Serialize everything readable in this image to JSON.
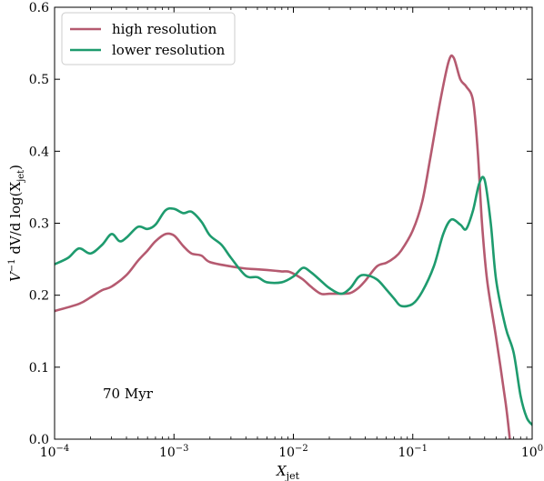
{
  "chart_data": {
    "type": "line",
    "xscale": "log",
    "xlim": [
      0.0001,
      1
    ],
    "ylim": [
      0.0,
      0.6
    ],
    "x_ticks": [
      {
        "value": 0.0001,
        "base": "10",
        "exp": "−4"
      },
      {
        "value": 0.001,
        "base": "10",
        "exp": "−3"
      },
      {
        "value": 0.01,
        "base": "10",
        "exp": "−2"
      },
      {
        "value": 0.1,
        "base": "10",
        "exp": "−1"
      },
      {
        "value": 1,
        "base": "10",
        "exp": "0"
      }
    ],
    "y_ticks": [
      {
        "value": 0.0,
        "label": "0.0"
      },
      {
        "value": 0.1,
        "label": "0.1"
      },
      {
        "value": 0.2,
        "label": "0.2"
      },
      {
        "value": 0.3,
        "label": "0.3"
      },
      {
        "value": 0.4,
        "label": "0.4"
      },
      {
        "value": 0.5,
        "label": "0.5"
      },
      {
        "value": 0.6,
        "label": "0.6"
      }
    ],
    "xlabel": {
      "main": "X",
      "sub": "jet"
    },
    "ylabel": {
      "pre": "V",
      "sup": "−1",
      "mid": " dV/d log(X",
      "sub": "jet",
      "post": ")"
    },
    "annotation": "70 Myr",
    "legend_position": "top-left",
    "grid": false,
    "series": [
      {
        "name": "high resolution",
        "color": "#b55a70",
        "points": [
          [
            0.0001,
            0.178
          ],
          [
            0.00016,
            0.188
          ],
          [
            0.0002,
            0.197
          ],
          [
            0.00025,
            0.207
          ],
          [
            0.0003,
            0.212
          ],
          [
            0.0004,
            0.228
          ],
          [
            0.0005,
            0.248
          ],
          [
            0.0006,
            0.262
          ],
          [
            0.0007,
            0.275
          ],
          [
            0.00085,
            0.285
          ],
          [
            0.001,
            0.283
          ],
          [
            0.0012,
            0.268
          ],
          [
            0.0014,
            0.258
          ],
          [
            0.0017,
            0.255
          ],
          [
            0.002,
            0.246
          ],
          [
            0.003,
            0.24
          ],
          [
            0.004,
            0.237
          ],
          [
            0.005,
            0.236
          ],
          [
            0.006,
            0.235
          ],
          [
            0.007,
            0.234
          ],
          [
            0.008,
            0.233
          ],
          [
            0.009,
            0.233
          ],
          [
            0.01,
            0.23
          ],
          [
            0.012,
            0.222
          ],
          [
            0.014,
            0.212
          ],
          [
            0.017,
            0.202
          ],
          [
            0.02,
            0.202
          ],
          [
            0.025,
            0.202
          ],
          [
            0.03,
            0.203
          ],
          [
            0.035,
            0.21
          ],
          [
            0.04,
            0.22
          ],
          [
            0.05,
            0.24
          ],
          [
            0.06,
            0.245
          ],
          [
            0.07,
            0.252
          ],
          [
            0.08,
            0.262
          ],
          [
            0.1,
            0.29
          ],
          [
            0.12,
            0.33
          ],
          [
            0.14,
            0.39
          ],
          [
            0.17,
            0.47
          ],
          [
            0.2,
            0.525
          ],
          [
            0.22,
            0.53
          ],
          [
            0.25,
            0.5
          ],
          [
            0.28,
            0.49
          ],
          [
            0.32,
            0.47
          ],
          [
            0.35,
            0.4
          ],
          [
            0.38,
            0.3
          ],
          [
            0.42,
            0.22
          ],
          [
            0.5,
            0.14
          ],
          [
            0.6,
            0.05
          ],
          [
            0.65,
            0.0
          ]
        ]
      },
      {
        "name": "lower resolution",
        "color": "#1e9b6e",
        "points": [
          [
            0.0001,
            0.243
          ],
          [
            0.00013,
            0.252
          ],
          [
            0.00016,
            0.265
          ],
          [
            0.0002,
            0.258
          ],
          [
            0.00025,
            0.27
          ],
          [
            0.0003,
            0.285
          ],
          [
            0.00035,
            0.275
          ],
          [
            0.0004,
            0.28
          ],
          [
            0.0005,
            0.295
          ],
          [
            0.0006,
            0.292
          ],
          [
            0.0007,
            0.298
          ],
          [
            0.00085,
            0.318
          ],
          [
            0.001,
            0.32
          ],
          [
            0.0012,
            0.314
          ],
          [
            0.0014,
            0.316
          ],
          [
            0.0017,
            0.302
          ],
          [
            0.002,
            0.283
          ],
          [
            0.0025,
            0.27
          ],
          [
            0.003,
            0.252
          ],
          [
            0.004,
            0.227
          ],
          [
            0.005,
            0.225
          ],
          [
            0.006,
            0.218
          ],
          [
            0.008,
            0.218
          ],
          [
            0.01,
            0.226
          ],
          [
            0.012,
            0.238
          ],
          [
            0.014,
            0.232
          ],
          [
            0.017,
            0.22
          ],
          [
            0.02,
            0.21
          ],
          [
            0.025,
            0.202
          ],
          [
            0.03,
            0.21
          ],
          [
            0.035,
            0.225
          ],
          [
            0.04,
            0.228
          ],
          [
            0.05,
            0.222
          ],
          [
            0.06,
            0.208
          ],
          [
            0.07,
            0.195
          ],
          [
            0.08,
            0.185
          ],
          [
            0.1,
            0.188
          ],
          [
            0.12,
            0.205
          ],
          [
            0.15,
            0.24
          ],
          [
            0.18,
            0.285
          ],
          [
            0.21,
            0.305
          ],
          [
            0.25,
            0.298
          ],
          [
            0.28,
            0.292
          ],
          [
            0.32,
            0.318
          ],
          [
            0.36,
            0.355
          ],
          [
            0.4,
            0.36
          ],
          [
            0.45,
            0.3
          ],
          [
            0.5,
            0.22
          ],
          [
            0.6,
            0.155
          ],
          [
            0.7,
            0.12
          ],
          [
            0.8,
            0.06
          ],
          [
            0.9,
            0.03
          ],
          [
            1.0,
            0.02
          ]
        ]
      }
    ]
  }
}
